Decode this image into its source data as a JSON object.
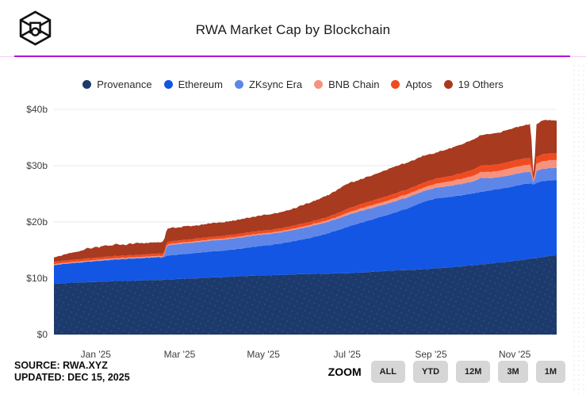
{
  "header": {
    "title": "RWA Market Cap by Blockchain"
  },
  "footer": {
    "source": "SOURCE: RWA.XYZ",
    "updated": "UPDATED: DEC 15, 2025",
    "zoom_label": "ZOOM",
    "zoom_buttons": [
      "ALL",
      "YTD",
      "12M",
      "3M",
      "1M"
    ]
  },
  "colors": {
    "divider": "#b113d5",
    "grid": "#e8e8e8",
    "provenance_dot_pattern": "#31518c"
  },
  "chart_data": {
    "type": "area",
    "stacked": true,
    "title": "RWA Market Cap by Blockchain",
    "ylabel_unit": "$b",
    "ylim": [
      0,
      40
    ],
    "xlim_months_since_dec15_2024": [
      0,
      12
    ],
    "grid": true,
    "legend_position": "top",
    "yticks": [
      {
        "label": "$40b",
        "value": 40
      },
      {
        "label": "$30b",
        "value": 30
      },
      {
        "label": "$20b",
        "value": 20
      },
      {
        "label": "$10b",
        "value": 10
      },
      {
        "label": "$0",
        "value": 0
      }
    ],
    "xticks": [
      {
        "label": "Jan '25",
        "t": 1
      },
      {
        "label": "Mar '25",
        "t": 3
      },
      {
        "label": "May '25",
        "t": 5
      },
      {
        "label": "Jul '25",
        "t": 7
      },
      {
        "label": "Sep '25",
        "t": 9
      },
      {
        "label": "Nov '25",
        "t": 11
      }
    ],
    "x": [
      0,
      0.2,
      0.4,
      0.6,
      0.8,
      0.9,
      1.0,
      1.1,
      1.2,
      1.35,
      1.5,
      1.65,
      1.8,
      2.0,
      2.2,
      2.4,
      2.55,
      2.62,
      2.7,
      2.85,
      3.0,
      3.2,
      3.4,
      3.6,
      3.8,
      4.0,
      4.3,
      4.6,
      4.9,
      5.2,
      5.5,
      5.8,
      6.1,
      6.4,
      6.7,
      7.0,
      7.3,
      7.6,
      7.9,
      8.2,
      8.5,
      8.8,
      9.1,
      9.4,
      9.7,
      10.0,
      10.2,
      10.4,
      10.6,
      10.8,
      11.0,
      11.2,
      11.38,
      11.45,
      11.52,
      11.7,
      11.85,
      12.0
    ],
    "series": [
      {
        "name": "Provenance",
        "color": "#1c3a6b",
        "pattern": "dots",
        "values": [
          9.0,
          9.1,
          9.2,
          9.25,
          9.3,
          9.3,
          9.35,
          9.4,
          9.4,
          9.45,
          9.5,
          9.5,
          9.55,
          9.6,
          9.65,
          9.7,
          9.7,
          9.75,
          9.8,
          9.85,
          9.9,
          9.95,
          10.0,
          10.1,
          10.15,
          10.2,
          10.3,
          10.4,
          10.5,
          10.55,
          10.6,
          10.7,
          10.75,
          10.8,
          10.85,
          10.9,
          11.0,
          11.15,
          11.3,
          11.4,
          11.5,
          11.6,
          11.75,
          11.9,
          12.1,
          12.3,
          12.45,
          12.6,
          12.75,
          12.9,
          13.1,
          13.3,
          13.5,
          13.55,
          13.6,
          13.8,
          14.0,
          14.1
        ]
      },
      {
        "name": "Ethereum",
        "color": "#1356e4",
        "values": [
          3.3,
          3.4,
          3.45,
          3.5,
          3.6,
          3.65,
          3.7,
          3.7,
          3.75,
          3.8,
          3.8,
          3.85,
          3.9,
          3.9,
          3.95,
          4.0,
          4.0,
          4.0,
          4.2,
          4.3,
          4.35,
          4.4,
          4.5,
          4.55,
          4.6,
          4.7,
          4.8,
          5.0,
          5.2,
          5.4,
          5.7,
          6.0,
          6.4,
          6.9,
          7.5,
          8.2,
          8.8,
          9.3,
          9.8,
          10.4,
          11.1,
          11.9,
          12.4,
          12.5,
          12.6,
          12.8,
          12.9,
          13.0,
          13.1,
          13.2,
          13.3,
          13.4,
          13.4,
          13.0,
          13.4,
          13.5,
          13.4,
          13.3
        ]
      },
      {
        "name": "ZKsync Era",
        "color": "#5e86e8",
        "values": [
          0.05,
          0.05,
          0.05,
          0.05,
          0.05,
          0.05,
          0.08,
          0.08,
          0.08,
          0.08,
          0.1,
          0.1,
          0.1,
          0.1,
          0.1,
          0.1,
          0.1,
          0.1,
          1.8,
          1.85,
          1.85,
          1.9,
          1.9,
          1.9,
          1.95,
          1.95,
          1.95,
          2.0,
          2.0,
          2.0,
          2.0,
          2.0,
          2.05,
          2.05,
          2.05,
          2.1,
          2.1,
          2.05,
          2.0,
          2.0,
          1.95,
          1.9,
          1.9,
          1.95,
          2.0,
          2.1,
          2.5,
          2.2,
          2.1,
          2.1,
          2.1,
          2.1,
          2.1,
          0.2,
          2.1,
          2.15,
          2.2,
          2.2
        ]
      },
      {
        "name": "BNB Chain",
        "color": "#f5937e",
        "values": [
          0.15,
          0.15,
          0.15,
          0.15,
          0.15,
          0.15,
          0.15,
          0.15,
          0.15,
          0.15,
          0.15,
          0.15,
          0.15,
          0.15,
          0.15,
          0.15,
          0.15,
          0.15,
          0.2,
          0.2,
          0.2,
          0.2,
          0.2,
          0.2,
          0.2,
          0.2,
          0.2,
          0.2,
          0.2,
          0.2,
          0.2,
          0.25,
          0.25,
          0.3,
          0.3,
          0.4,
          0.45,
          0.5,
          0.5,
          0.55,
          0.6,
          0.6,
          0.7,
          0.8,
          0.9,
          1.0,
          1.05,
          1.1,
          1.1,
          1.2,
          1.25,
          1.25,
          1.25,
          0.1,
          1.3,
          1.35,
          1.4,
          1.4
        ]
      },
      {
        "name": "Aptos",
        "color": "#f04b20",
        "values": [
          0.4,
          0.4,
          0.4,
          0.4,
          0.4,
          0.4,
          0.4,
          0.4,
          0.4,
          0.4,
          0.4,
          0.4,
          0.4,
          0.4,
          0.4,
          0.4,
          0.45,
          0.45,
          0.45,
          0.45,
          0.45,
          0.45,
          0.45,
          0.45,
          0.45,
          0.45,
          0.5,
          0.5,
          0.5,
          0.5,
          0.5,
          0.55,
          0.55,
          0.55,
          0.6,
          0.7,
          0.75,
          0.8,
          0.85,
          0.85,
          0.85,
          0.9,
          0.9,
          0.9,
          1.0,
          1.1,
          1.15,
          1.2,
          1.2,
          1.2,
          1.2,
          1.2,
          1.2,
          0.1,
          1.2,
          1.25,
          1.2,
          1.2
        ]
      },
      {
        "name": "19 Others",
        "color": "#a83a1f",
        "values": [
          0.8,
          1.0,
          1.2,
          1.4,
          1.8,
          1.7,
          1.9,
          1.8,
          2.0,
          1.9,
          2.1,
          1.9,
          2.0,
          2.1,
          2.0,
          2.1,
          2.0,
          2.1,
          2.3,
          2.4,
          2.3,
          2.4,
          2.3,
          2.4,
          2.5,
          2.4,
          2.5,
          2.6,
          2.7,
          2.8,
          2.9,
          3.1,
          3.4,
          3.7,
          4.1,
          4.5,
          4.4,
          4.5,
          4.7,
          4.8,
          4.7,
          4.8,
          4.6,
          4.9,
          5.1,
          5.3,
          5.4,
          5.5,
          5.6,
          5.7,
          5.8,
          5.9,
          6.0,
          0.3,
          5.9,
          6.0,
          5.9,
          5.8
        ]
      }
    ]
  }
}
